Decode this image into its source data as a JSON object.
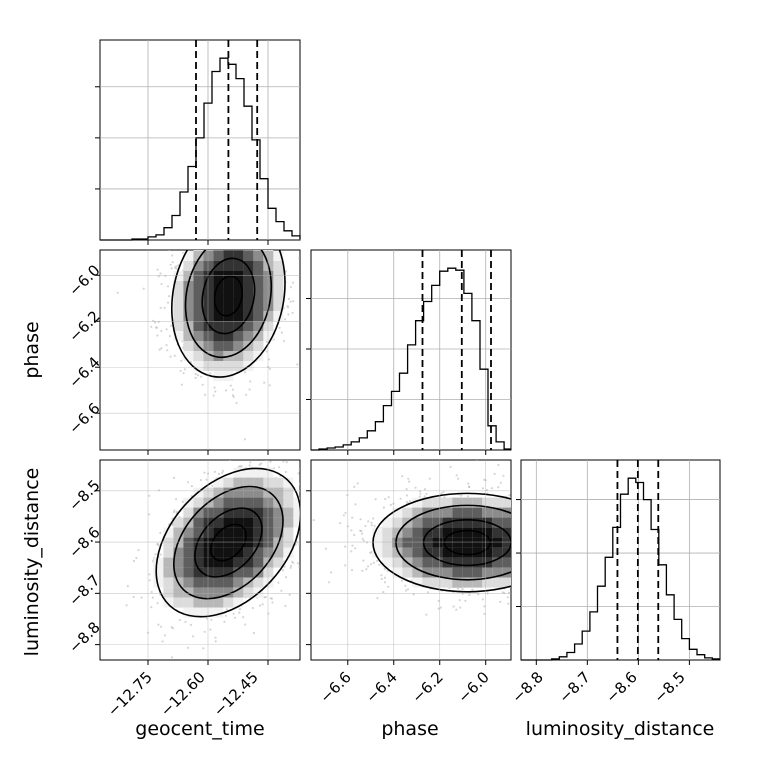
{
  "chart_data": {
    "type": "corner",
    "parameters": [
      "geocent_time",
      "phase",
      "luminosity_distance"
    ],
    "axes": {
      "geocent_time": {
        "label": "geocent_time",
        "range": [
          -12.87,
          -12.37
        ],
        "ticks": [
          -12.75,
          -12.6,
          -12.45
        ],
        "tick_labels": [
          "−12.75",
          "−12.60",
          "−12.45"
        ]
      },
      "phase": {
        "label": "phase",
        "range": [
          -6.76,
          -5.89
        ],
        "ticks": [
          -6.6,
          -6.4,
          -6.2,
          -6.0
        ],
        "tick_labels": [
          "−6.6",
          "−6.4",
          "−6.2",
          "−6.0"
        ]
      },
      "luminosity_distance": {
        "label": "luminosity_distance",
        "range": [
          -8.83,
          -8.44
        ],
        "ticks": [
          -8.8,
          -8.7,
          -8.6,
          -8.5
        ],
        "tick_labels": [
          "−8.8",
          "−8.7",
          "−8.6",
          "−8.5"
        ]
      }
    },
    "histograms": [
      {
        "parameter": "geocent_time",
        "bins": [
          -12.87,
          -12.85,
          -12.83,
          -12.81,
          -12.79,
          -12.77,
          -12.75,
          -12.73,
          -12.71,
          -12.69,
          -12.67,
          -12.65,
          -12.63,
          -12.61,
          -12.59,
          -12.57,
          -12.55,
          -12.53,
          -12.51,
          -12.49,
          -12.47,
          -12.45,
          -12.43,
          -12.41,
          -12.39,
          -12.37
        ],
        "counts": [
          0,
          0,
          0,
          0,
          1,
          1,
          3,
          5,
          12,
          24,
          47,
          72,
          100,
          134,
          165,
          178,
          172,
          158,
          131,
          98,
          60,
          31,
          18,
          9,
          4,
          1
        ]
      },
      {
        "parameter": "phase",
        "bins": [
          -6.76,
          -6.725,
          -6.69,
          -6.655,
          -6.62,
          -6.585,
          -6.55,
          -6.515,
          -6.48,
          -6.445,
          -6.41,
          -6.375,
          -6.34,
          -6.305,
          -6.27,
          -6.235,
          -6.2,
          -6.165,
          -6.13,
          -6.095,
          -6.06,
          -6.025,
          -5.99,
          -5.955,
          -5.92,
          -5.89
        ],
        "counts": [
          0,
          1,
          2,
          3,
          5,
          8,
          12,
          19,
          28,
          44,
          58,
          76,
          104,
          128,
          147,
          163,
          177,
          180,
          178,
          155,
          128,
          80,
          24,
          8,
          1
        ]
      },
      {
        "parameter": "luminosity_distance",
        "bins": [
          -8.83,
          -8.815,
          -8.8,
          -8.785,
          -8.77,
          -8.755,
          -8.74,
          -8.725,
          -8.71,
          -8.695,
          -8.68,
          -8.665,
          -8.65,
          -8.635,
          -8.62,
          -8.605,
          -8.59,
          -8.575,
          -8.56,
          -8.545,
          -8.53,
          -8.515,
          -8.5,
          -8.485,
          -8.47,
          -8.455,
          -8.44
        ],
        "counts": [
          0,
          0,
          0,
          0,
          1,
          3,
          7,
          15,
          27,
          45,
          69,
          96,
          124,
          155,
          170,
          166,
          150,
          122,
          89,
          61,
          38,
          20,
          10,
          5,
          2,
          1
        ]
      }
    ],
    "quantiles": {
      "geocent_time": [
        -12.63,
        -12.549,
        -12.477
      ],
      "phase": [
        -6.275,
        -6.104,
        -5.977
      ],
      "luminosity_distance": [
        -8.641,
        -8.601,
        -8.561
      ]
    },
    "density_peaks": {
      "phase_vs_geocent_time": {
        "x": -12.549,
        "y": -6.09
      },
      "luminosity_distance_vs_geocent_time": {
        "x": -12.549,
        "y": -8.601
      },
      "luminosity_distance_vs_phase": {
        "x": -6.08,
        "y": -8.601
      }
    },
    "grid": true,
    "line_color": "#000000",
    "scatter_color": "#b3b3b3"
  }
}
